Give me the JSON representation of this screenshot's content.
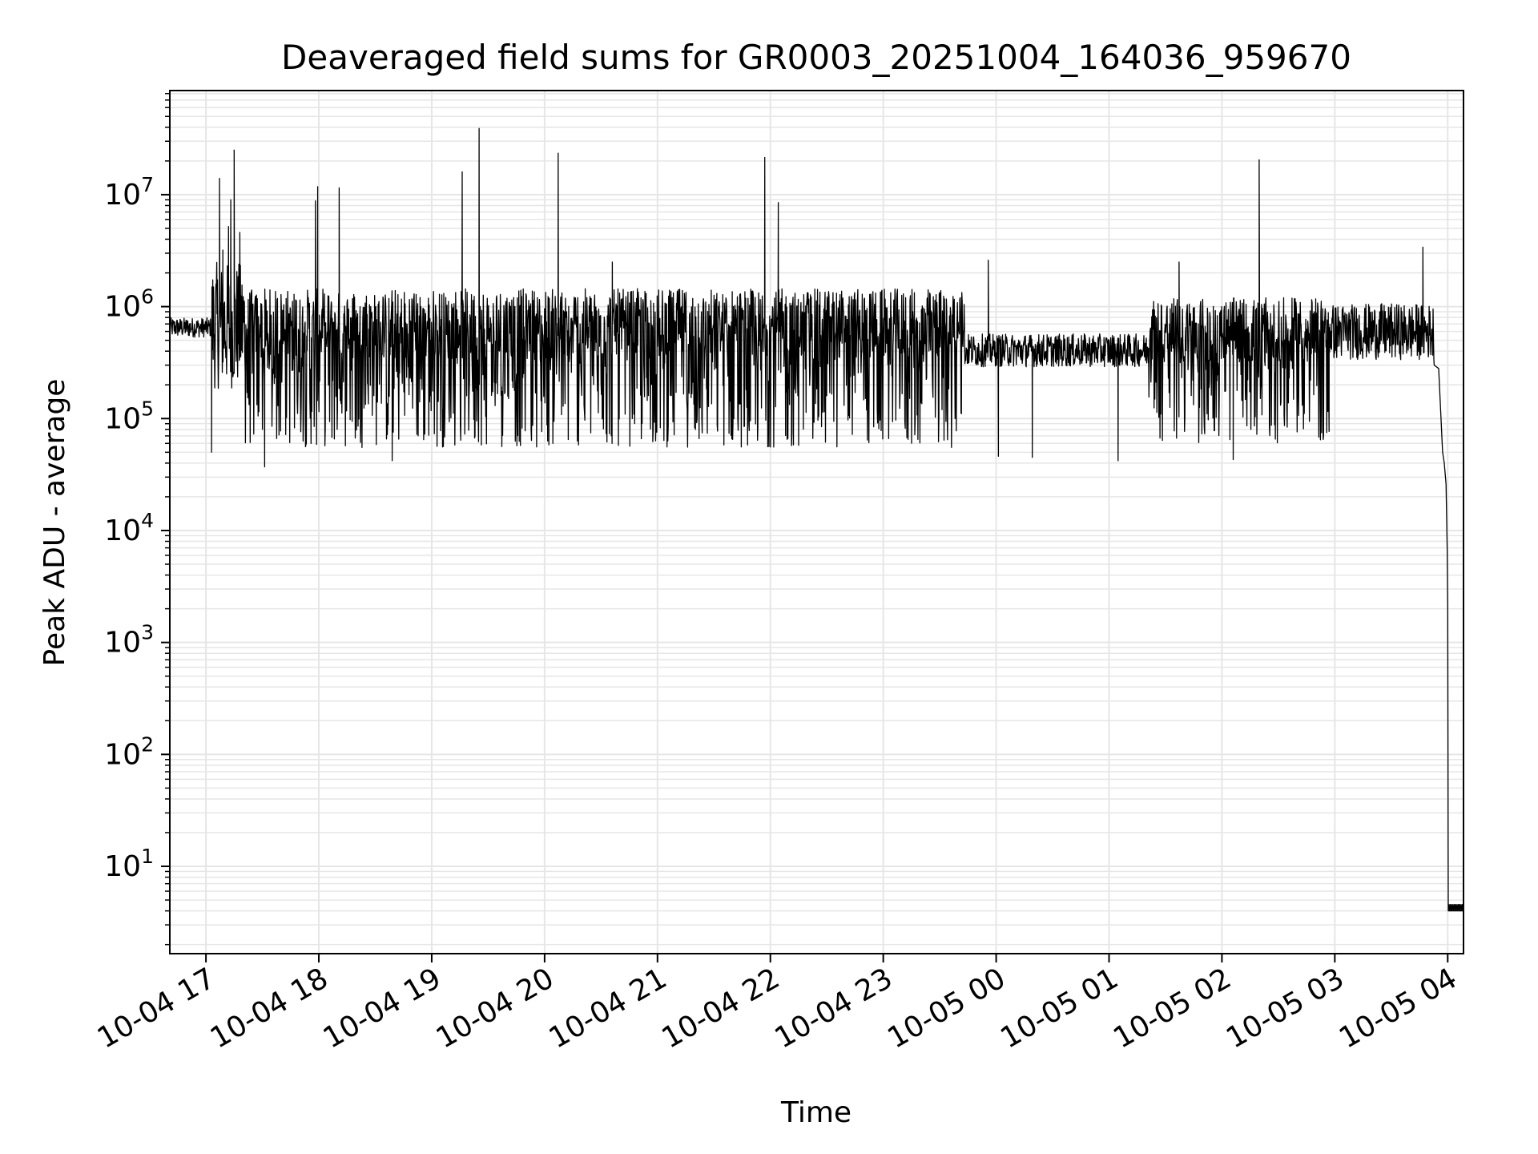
{
  "chart_data": {
    "type": "line",
    "title": "Deaveraged field sums for GR0003_20251004_164036_959670",
    "xlabel": "Time",
    "ylabel": "Peak ADU - average",
    "yscale": "log",
    "ylim_exponent": [
      0.22,
      7.93
    ],
    "xlim_hours": [
      16.68,
      28.14
    ],
    "grid": true,
    "grid_which": "both",
    "line_color": "#000000",
    "x_ticks": [
      {
        "hour": 17,
        "label": "10-04 17"
      },
      {
        "hour": 18,
        "label": "10-04 18"
      },
      {
        "hour": 19,
        "label": "10-04 19"
      },
      {
        "hour": 20,
        "label": "10-04 20"
      },
      {
        "hour": 21,
        "label": "10-04 21"
      },
      {
        "hour": 22,
        "label": "10-04 22"
      },
      {
        "hour": 23,
        "label": "10-04 23"
      },
      {
        "hour": 24,
        "label": "10-05 00"
      },
      {
        "hour": 25,
        "label": "10-05 01"
      },
      {
        "hour": 26,
        "label": "10-05 02"
      },
      {
        "hour": 27,
        "label": "10-05 03"
      },
      {
        "hour": 28,
        "label": "10-05 04"
      }
    ],
    "y_ticks": [
      {
        "exp": 1,
        "base": "10",
        "sup": "1"
      },
      {
        "exp": 2,
        "base": "10",
        "sup": "2"
      },
      {
        "exp": 3,
        "base": "10",
        "sup": "3"
      },
      {
        "exp": 4,
        "base": "10",
        "sup": "4"
      },
      {
        "exp": 5,
        "base": "10",
        "sup": "5"
      },
      {
        "exp": 6,
        "base": "10",
        "sup": "6"
      },
      {
        "exp": 7,
        "base": "10",
        "sup": "7"
      }
    ],
    "series": [
      {
        "name": "deaveraged field sum",
        "segments": [
          {
            "start": 16.68,
            "end": 17.05,
            "lo": 400000.0,
            "hi": 900000.0,
            "style": "moderate"
          },
          {
            "start": 17.05,
            "end": 17.35,
            "lo": 60000.0,
            "hi": 2500000.0,
            "style": "burst"
          },
          {
            "start": 17.35,
            "end": 23.72,
            "lo": 55000.0,
            "hi": 1450000.0,
            "style": "dense"
          },
          {
            "start": 23.72,
            "end": 25.35,
            "lo": 180000.0,
            "hi": 700000.0,
            "style": "moderate"
          },
          {
            "start": 25.35,
            "end": 26.95,
            "lo": 60000.0,
            "hi": 1200000.0,
            "style": "dense"
          },
          {
            "start": 26.95,
            "end": 27.88,
            "lo": 150000.0,
            "hi": 1500000.0,
            "style": "moderate"
          }
        ],
        "spikes": [
          {
            "hour": 17.12,
            "value": 14000000.0
          },
          {
            "hour": 17.25,
            "value": 25000000.0
          },
          {
            "hour": 17.22,
            "value": 9000000.0
          },
          {
            "hour": 17.2,
            "value": 5200000.0
          },
          {
            "hour": 17.15,
            "value": 3200000.0
          },
          {
            "hour": 17.3,
            "value": 4600000.0
          },
          {
            "hour": 17.97,
            "value": 8800000.0
          },
          {
            "hour": 17.99,
            "value": 11800000.0
          },
          {
            "hour": 18.18,
            "value": 11500000.0
          },
          {
            "hour": 19.27,
            "value": 16000000.0
          },
          {
            "hour": 19.42,
            "value": 39000000.0
          },
          {
            "hour": 20.12,
            "value": 23500000.0
          },
          {
            "hour": 20.6,
            "value": 2500000.0
          },
          {
            "hour": 21.95,
            "value": 21500000.0
          },
          {
            "hour": 22.07,
            "value": 8500000.0
          },
          {
            "hour": 23.93,
            "value": 2600000.0
          },
          {
            "hour": 25.62,
            "value": 2500000.0
          },
          {
            "hour": 26.33,
            "value": 20500000.0
          },
          {
            "hour": 27.78,
            "value": 3400000.0
          },
          {
            "hour": 17.05,
            "value": 50000.0
          },
          {
            "hour": 17.52,
            "value": 37000.0
          },
          {
            "hour": 18.65,
            "value": 42000.0
          },
          {
            "hour": 24.02,
            "value": 46000.0
          },
          {
            "hour": 24.32,
            "value": 45000.0
          },
          {
            "hour": 25.08,
            "value": 42000.0
          },
          {
            "hour": 26.1,
            "value": 43000.0
          }
        ],
        "dropoff": [
          {
            "hour": 27.88,
            "value": 300000.0
          },
          {
            "hour": 27.92,
            "value": 280000.0
          },
          {
            "hour": 27.955,
            "value": 50000.0
          },
          {
            "hour": 27.97,
            "value": 40000.0
          },
          {
            "hour": 27.985,
            "value": 26000.0
          },
          {
            "hour": 27.995,
            "value": 7000.0
          },
          {
            "hour": 28.0,
            "value": 2100.0
          },
          {
            "hour": 28.005,
            "value": 4.0
          },
          {
            "hour": 28.14,
            "value": 4.0
          }
        ],
        "floor": {
          "start": 28.005,
          "end": 28.14,
          "lo": 4.0,
          "hi": 4.6
        }
      }
    ]
  }
}
